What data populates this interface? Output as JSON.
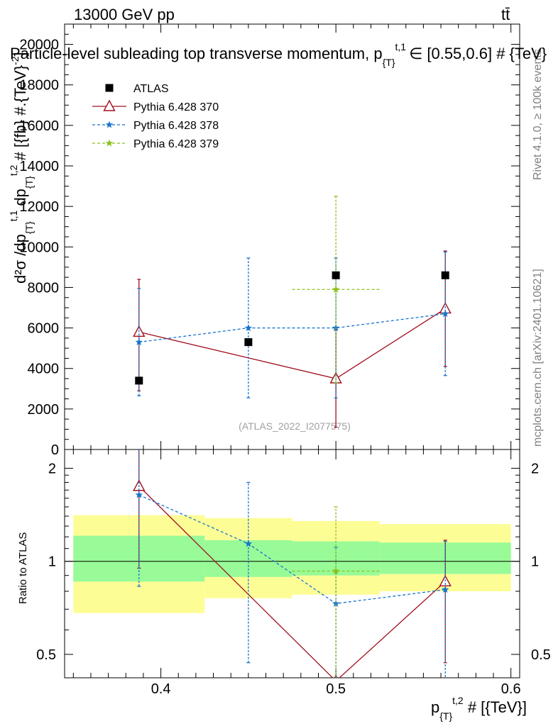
{
  "header": {
    "energy_label": "13000 GeV pp",
    "process_label": "tt̄"
  },
  "side_labels": {
    "rivet": "Rivet 4.1.0, ≥ 100k events",
    "mcplots": "mcplots.cern.ch [arXiv:2401.10621]"
  },
  "chart_data": [
    {
      "panel": "main",
      "type": "scatter",
      "title": "Particle-level subleading top transverse momentum, p_{T}^{t,1} ∈ [0.55,0.6] # {TeV}",
      "title_display": "Particle-level subleading top transverse momentum, p",
      "title_sub": "{T}",
      "title_sup": "t,1",
      "title_tail": "∈ [0.55,0.6] # {TeV}",
      "ylabel": "d²σ /dp_{T}^{t,1} dp_{T}^{t,2} # [{fb} #.{TeV}^{-2}]",
      "ylabel_display": "d²σ /dp",
      "ylabel_sub1": "{T}",
      "ylabel_sup1": "t,1",
      "ylabel_mid": " dp",
      "ylabel_sub2": "{T}",
      "ylabel_sup2": "t,2",
      "ylabel_tail": " # [{fb} #.{TeV}",
      "ylabel_sup3": "-2",
      "ylabel_end": "]",
      "xlim": [
        0.345,
        0.605
      ],
      "ylim": [
        0,
        21000
      ],
      "yticks": [
        0,
        2000,
        4000,
        6000,
        8000,
        10000,
        12000,
        14000,
        16000,
        18000,
        20000
      ],
      "ytick_labels": [
        "0",
        "2000",
        "4000",
        "6000",
        "8000",
        "10000",
        "12000",
        "14000",
        "16000",
        "18000",
        "20000"
      ],
      "watermark": "(ATLAS_2022_I2077575)",
      "legend": [
        "ATLAS",
        "Pythia 6.428 370",
        "Pythia 6.428 378",
        "Pythia 6.428 379"
      ],
      "legend_position": "top-left",
      "series": [
        {
          "name": "ATLAS",
          "color": "#000000",
          "marker": "square",
          "line": "none",
          "x": [
            0.3875,
            0.45,
            0.5,
            0.5625
          ],
          "y": [
            3400,
            5300,
            8600,
            8600
          ]
        },
        {
          "name": "Pythia 6.428 370",
          "color": "#a01020",
          "marker": "triangle-open",
          "line": "solid",
          "x": [
            0.3875,
            0.5,
            0.5625
          ],
          "y": [
            5800,
            3500,
            6950
          ],
          "yerr_low": [
            2900,
            2400,
            2850
          ],
          "yerr_high": [
            2600,
            2400,
            2850
          ]
        },
        {
          "name": "Pythia 6.428 378",
          "color": "#1874cd",
          "marker": "star",
          "line": "dashed",
          "x": [
            0.3875,
            0.45,
            0.5,
            0.5625
          ],
          "y": [
            5300,
            6000,
            6000,
            6700
          ],
          "yerr_low": [
            2650,
            3450,
            3450,
            3050
          ],
          "yerr_high": [
            2650,
            3450,
            3450,
            3050
          ]
        },
        {
          "name": "Pythia 6.428 379",
          "color": "#8ac21a",
          "marker": "star",
          "line": "dashed",
          "x": [
            0.5
          ],
          "y": [
            7900
          ],
          "xerr": [
            0.025
          ],
          "yerr_low": [
            4600
          ],
          "yerr_high": [
            4600
          ]
        }
      ]
    },
    {
      "panel": "ratio",
      "type": "scatter",
      "ylabel": "Ratio to ATLAS",
      "xlabel": "p_{T}^{t,2} # [{TeV}]",
      "xlabel_display": "p",
      "xlabel_sub": "{T}",
      "xlabel_sup": "t,2",
      "xlabel_tail": " # [{TeV}]",
      "xlim": [
        0.345,
        0.605
      ],
      "ylim": [
        0.42,
        2.3
      ],
      "xticks": [
        0.4,
        0.5,
        0.6
      ],
      "xtick_labels": [
        "0.4",
        "0.5",
        "0.6"
      ],
      "yticks": [
        0.5,
        1,
        2
      ],
      "ytick_labels": [
        "0.5",
        "1",
        "2"
      ],
      "bands": [
        {
          "x0": 0.35,
          "x1": 0.425,
          "yellow": [
            0.68,
            1.41
          ],
          "green": [
            0.86,
            1.21
          ]
        },
        {
          "x0": 0.425,
          "x1": 0.475,
          "yellow": [
            0.76,
            1.38
          ],
          "green": [
            0.89,
            1.17
          ]
        },
        {
          "x0": 0.475,
          "x1": 0.525,
          "yellow": [
            0.78,
            1.35
          ],
          "green": [
            0.9,
            1.16
          ]
        },
        {
          "x0": 0.525,
          "x1": 0.6,
          "yellow": [
            0.8,
            1.32
          ],
          "green": [
            0.91,
            1.15
          ]
        }
      ],
      "series": [
        {
          "name": "Pythia 6.428 370",
          "color": "#a01020",
          "marker": "triangle-open",
          "line": "solid",
          "x": [
            0.3875,
            0.5,
            0.5625
          ],
          "y": [
            1.75,
            0.41,
            0.86
          ],
          "yerr_low": [
            0.8,
            0.0,
            0.39
          ],
          "yerr_high": [
            0.6,
            0.0,
            0.31
          ]
        },
        {
          "name": "Pythia 6.428 378",
          "color": "#1874cd",
          "marker": "star",
          "line": "dashed",
          "x": [
            0.3875,
            0.45,
            0.5,
            0.5625
          ],
          "y": [
            1.64,
            1.14,
            0.73,
            0.81
          ],
          "yerr_low": [
            0.81,
            0.67,
            0.31,
            0.43
          ],
          "yerr_high": [
            0.76,
            0.66,
            0.38,
            0.35
          ]
        },
        {
          "name": "Pythia 6.428 379",
          "color": "#8ac21a",
          "marker": "star",
          "line": "dashed",
          "x": [
            0.5
          ],
          "y": [
            0.93
          ],
          "xerr": [
            0.025
          ],
          "yerr_low": [
            0.52
          ],
          "yerr_high": [
            0.57
          ]
        }
      ]
    }
  ]
}
